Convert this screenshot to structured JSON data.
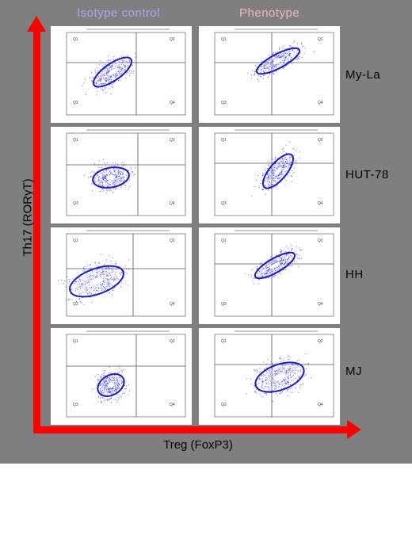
{
  "column_headers": {
    "isotype": "Isotype control",
    "phenotype": "Phenotype"
  },
  "row_labels": [
    "My-La",
    "HUT-78",
    "HH",
    "MJ"
  ],
  "axes": {
    "y_label": "Th17 (RORγT)",
    "x_label": "Treg (FoxP3)"
  },
  "quadrant_labels": [
    "Q1",
    "Q2",
    "Q3",
    "Q4"
  ],
  "colors": {
    "background": "#7f7f7f",
    "arrow": "#ff0000",
    "dots": "#2a2aff",
    "isotype_header": "#a9a9f0",
    "phenotype_header": "#f2b8b8"
  }
}
